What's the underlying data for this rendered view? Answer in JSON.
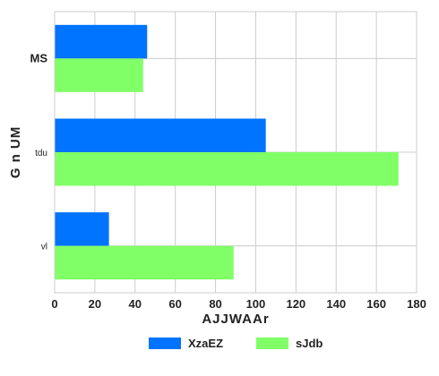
{
  "chart_data": {
    "type": "bar",
    "orientation": "horizontal",
    "categories": [
      "MS",
      "tdu",
      "vl"
    ],
    "series": [
      {
        "name": "XzaEZ",
        "color": "#0073ff",
        "values": [
          46,
          105,
          27
        ]
      },
      {
        "name": "sJdb",
        "color": "#80ff66",
        "values": [
          44,
          171,
          89
        ]
      }
    ],
    "xlabel": "AJJWAAr",
    "ylabel": "G n  UM",
    "xlim": [
      0,
      180
    ],
    "xticks": [
      0,
      20,
      40,
      60,
      80,
      100,
      120,
      140,
      160,
      180
    ],
    "grid": true,
    "legend_position": "bottom"
  }
}
